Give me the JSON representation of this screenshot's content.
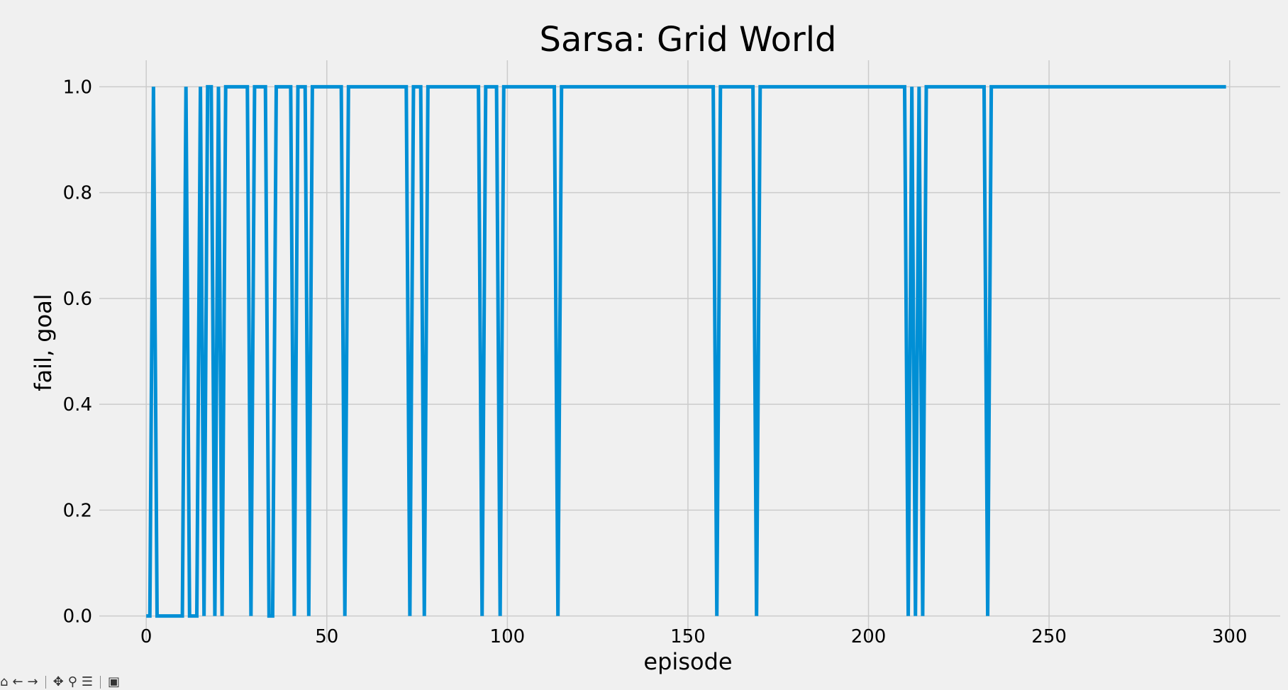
{
  "chart_data": {
    "type": "line",
    "title": "Sarsa: Grid World",
    "xlabel": "episode",
    "ylabel": "fail, goal",
    "xlim": [
      -13,
      314
    ],
    "ylim": [
      -0.05,
      1.05
    ],
    "xticks": [
      0,
      50,
      100,
      150,
      200,
      250,
      300
    ],
    "xtick_labels": [
      "0",
      "50",
      "100",
      "150",
      "200",
      "250",
      "300"
    ],
    "yticks": [
      0.0,
      0.2,
      0.4,
      0.6,
      0.8,
      1.0
    ],
    "ytick_labels": [
      "0.0",
      "0.2",
      "0.4",
      "0.6",
      "0.8",
      "1.0"
    ],
    "grid": true,
    "line_color": "#008fd5",
    "grid_color": "#cbcbcb",
    "background_color": "#f0f0f0",
    "series": [
      {
        "name": "fail, goal",
        "x_start": 0,
        "x_end": 299,
        "zero_episodes": [
          0,
          1,
          3,
          4,
          5,
          6,
          7,
          8,
          9,
          10,
          12,
          13,
          14,
          16,
          19,
          21,
          29,
          34,
          35,
          41,
          45,
          55,
          73,
          77,
          93,
          98,
          114,
          158,
          169,
          211,
          213,
          215,
          233
        ]
      }
    ]
  },
  "toolbar": {
    "home": "⌂",
    "back": "←",
    "forward": "→",
    "pan": "✥",
    "zoom": "⚲",
    "configure": "☰",
    "save": "▣"
  }
}
